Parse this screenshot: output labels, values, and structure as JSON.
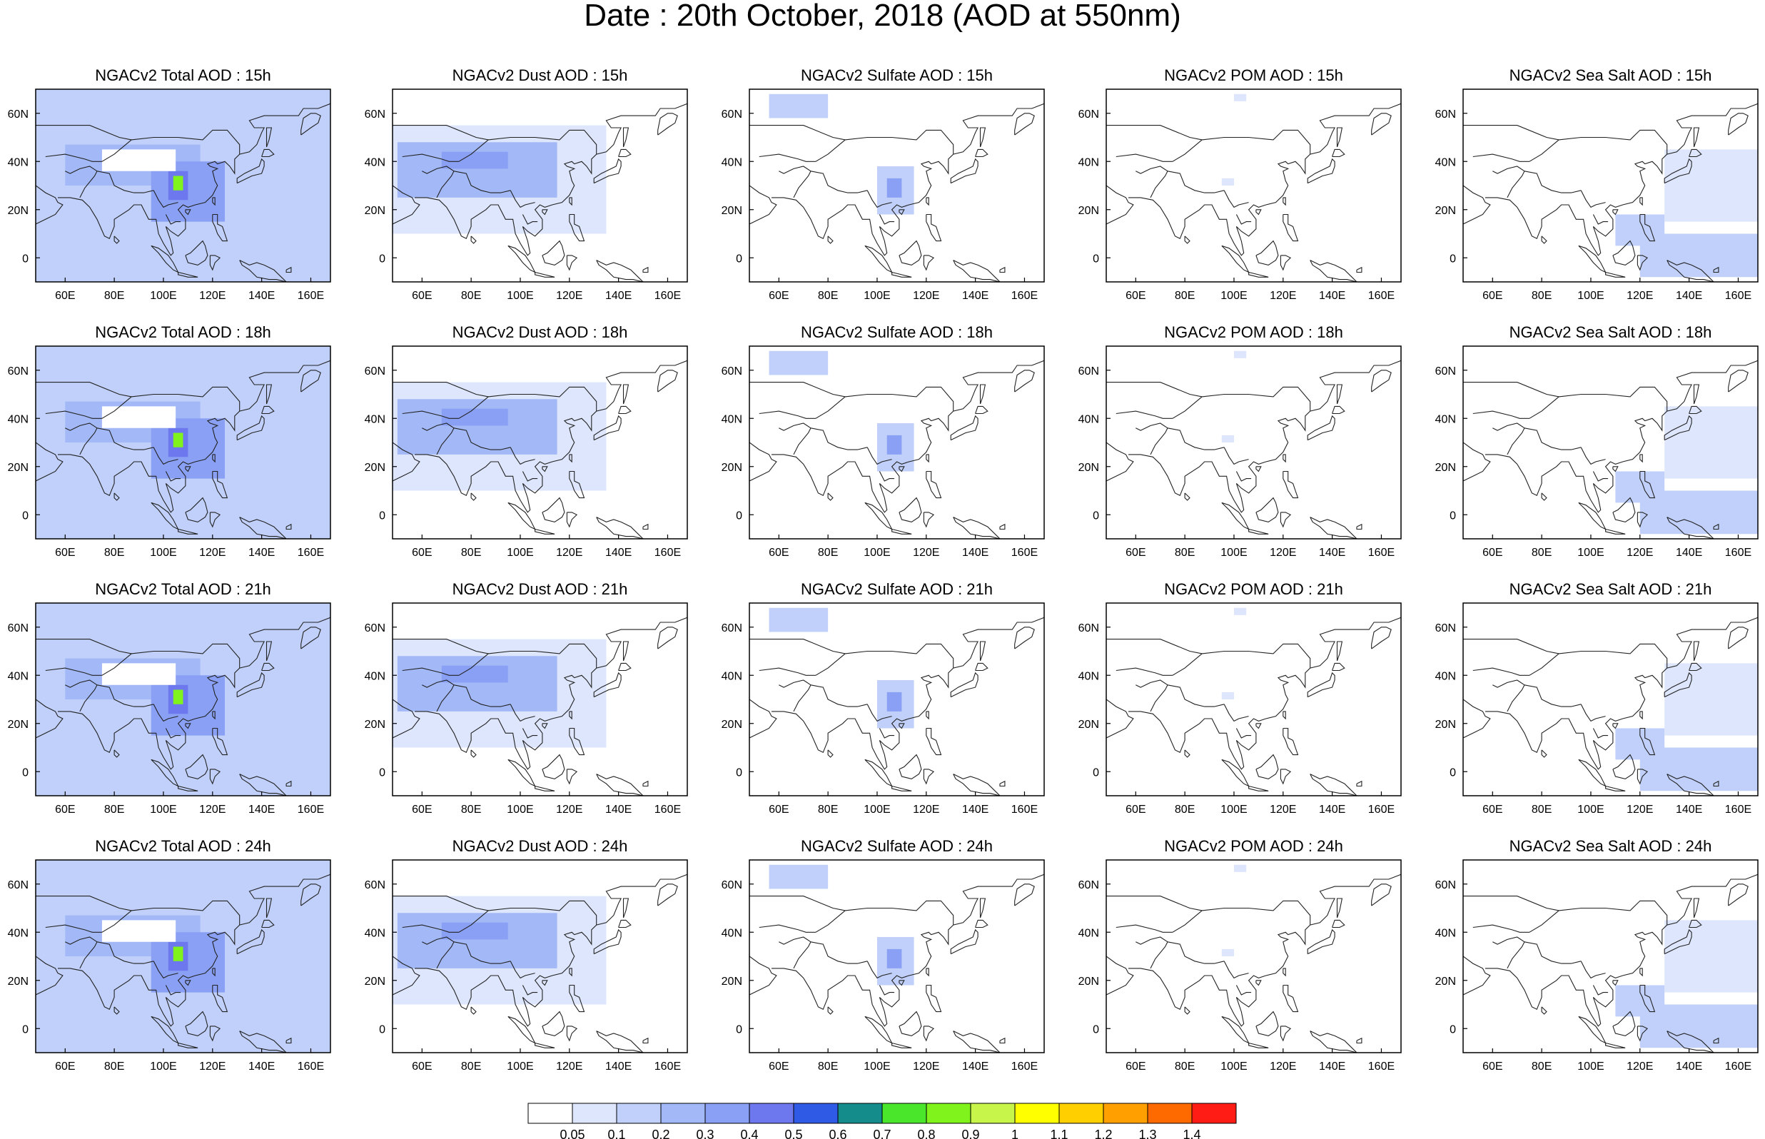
{
  "title": "Date : 20th October, 2018 (AOD at 550nm)",
  "axes": {
    "x_ticks": [
      "60E",
      "80E",
      "100E",
      "120E",
      "140E",
      "160E"
    ],
    "x_tick_values": [
      60,
      80,
      100,
      120,
      140,
      160
    ],
    "y_ticks": [
      "60N",
      "40N",
      "20N",
      "0"
    ],
    "y_tick_values": [
      60,
      40,
      20,
      0
    ],
    "lon_range": [
      48,
      168
    ],
    "lat_range": [
      -10,
      70
    ]
  },
  "panels": [
    [
      {
        "title": "NGACv2 Total AOD : 15h",
        "species": "total"
      },
      {
        "title": "NGACv2 Dust AOD : 15h",
        "species": "dust"
      },
      {
        "title": "NGACv2 Sulfate AOD : 15h",
        "species": "sulfate"
      },
      {
        "title": "NGACv2 POM AOD : 15h",
        "species": "pom"
      },
      {
        "title": "NGACv2 Sea Salt AOD : 15h",
        "species": "seasalt"
      }
    ],
    [
      {
        "title": "NGACv2 Total AOD : 18h",
        "species": "total"
      },
      {
        "title": "NGACv2 Dust AOD : 18h",
        "species": "dust"
      },
      {
        "title": "NGACv2 Sulfate AOD : 18h",
        "species": "sulfate"
      },
      {
        "title": "NGACv2 POM AOD : 18h",
        "species": "pom"
      },
      {
        "title": "NGACv2 Sea Salt AOD : 18h",
        "species": "seasalt"
      }
    ],
    [
      {
        "title": "NGACv2 Total AOD : 21h",
        "species": "total"
      },
      {
        "title": "NGACv2 Dust AOD : 21h",
        "species": "dust"
      },
      {
        "title": "NGACv2 Sulfate AOD : 21h",
        "species": "sulfate"
      },
      {
        "title": "NGACv2 POM AOD : 21h",
        "species": "pom"
      },
      {
        "title": "NGACv2 Sea Salt AOD : 21h",
        "species": "seasalt"
      }
    ],
    [
      {
        "title": "NGACv2 Total AOD : 24h",
        "species": "total"
      },
      {
        "title": "NGACv2 Dust AOD : 24h",
        "species": "dust"
      },
      {
        "title": "NGACv2 Sulfate AOD : 24h",
        "species": "sulfate"
      },
      {
        "title": "NGACv2 POM AOD : 24h",
        "species": "pom"
      },
      {
        "title": "NGACv2 Sea Salt  AOD : 24h",
        "species": "seasalt"
      }
    ]
  ],
  "colorbar": {
    "labels": [
      "0.05",
      "0.1",
      "0.2",
      "0.3",
      "0.4",
      "0.5",
      "0.6",
      "0.7",
      "0.8",
      "0.9",
      "1",
      "1.1",
      "1.2",
      "1.3",
      "1.4"
    ],
    "colors": [
      "#ffffff",
      "#dde6fc",
      "#c0d0fa",
      "#a3b8f7",
      "#8aa0f4",
      "#6e78ee",
      "#2f5ae6",
      "#148c8c",
      "#49e62c",
      "#80f21c",
      "#c8f54a",
      "#ffff00",
      "#ffcf00",
      "#ff9f00",
      "#ff6a00",
      "#ff1c14"
    ]
  },
  "chart_data": {
    "type": "heatmap",
    "title": "Date : 20th October, 2018 (AOD at 550nm)",
    "variable": "AOD at 550nm",
    "times": [
      "15h",
      "18h",
      "21h",
      "24h"
    ],
    "species": [
      "Total",
      "Dust",
      "Sulfate",
      "POM",
      "Sea Salt"
    ],
    "lon_range": [
      48,
      168
    ],
    "lat_range": [
      -10,
      70
    ],
    "levels": [
      0.05,
      0.1,
      0.2,
      0.3,
      0.4,
      0.5,
      0.6,
      0.7,
      0.8,
      0.9,
      1,
      1.1,
      1.2,
      1.3,
      1.4
    ],
    "regions": {
      "total": [
        {
          "lon": [
            48,
            168
          ],
          "lat": [
            -10,
            70
          ],
          "aod": 0.12
        },
        {
          "lon": [
            60,
            115
          ],
          "lat": [
            30,
            47
          ],
          "aod": 0.25
        },
        {
          "lon": [
            95,
            125
          ],
          "lat": [
            15,
            40
          ],
          "aod": 0.3
        },
        {
          "lon": [
            102,
            110
          ],
          "lat": [
            24,
            36
          ],
          "aod": 0.45
        },
        {
          "lon": [
            104,
            108
          ],
          "lat": [
            28,
            34
          ],
          "aod": 0.8
        },
        {
          "lon": [
            75,
            105
          ],
          "lat": [
            36,
            45
          ],
          "aod": 0.02
        }
      ],
      "dust": [
        {
          "lon": [
            48,
            135
          ],
          "lat": [
            10,
            55
          ],
          "aod": 0.08
        },
        {
          "lon": [
            50,
            115
          ],
          "lat": [
            25,
            48
          ],
          "aod": 0.2
        },
        {
          "lon": [
            68,
            95
          ],
          "lat": [
            37,
            44
          ],
          "aod": 0.3
        }
      ],
      "sulfate": [
        {
          "lon": [
            56,
            80
          ],
          "lat": [
            58,
            68
          ],
          "aod": 0.12
        },
        {
          "lon": [
            100,
            115
          ],
          "lat": [
            18,
            38
          ],
          "aod": 0.18
        },
        {
          "lon": [
            104,
            110
          ],
          "lat": [
            25,
            33
          ],
          "aod": 0.3
        }
      ],
      "pom": [
        {
          "lon": [
            100,
            105
          ],
          "lat": [
            65,
            68
          ],
          "aod": 0.07
        },
        {
          "lon": [
            95,
            100
          ],
          "lat": [
            30,
            33
          ],
          "aod": 0.07
        }
      ],
      "seasalt": [
        {
          "lon": [
            130,
            168
          ],
          "lat": [
            15,
            45
          ],
          "aod": 0.08
        },
        {
          "lon": [
            120,
            168
          ],
          "lat": [
            -8,
            10
          ],
          "aod": 0.12
        },
        {
          "lon": [
            110,
            130
          ],
          "lat": [
            5,
            18
          ],
          "aod": 0.1
        }
      ]
    }
  }
}
